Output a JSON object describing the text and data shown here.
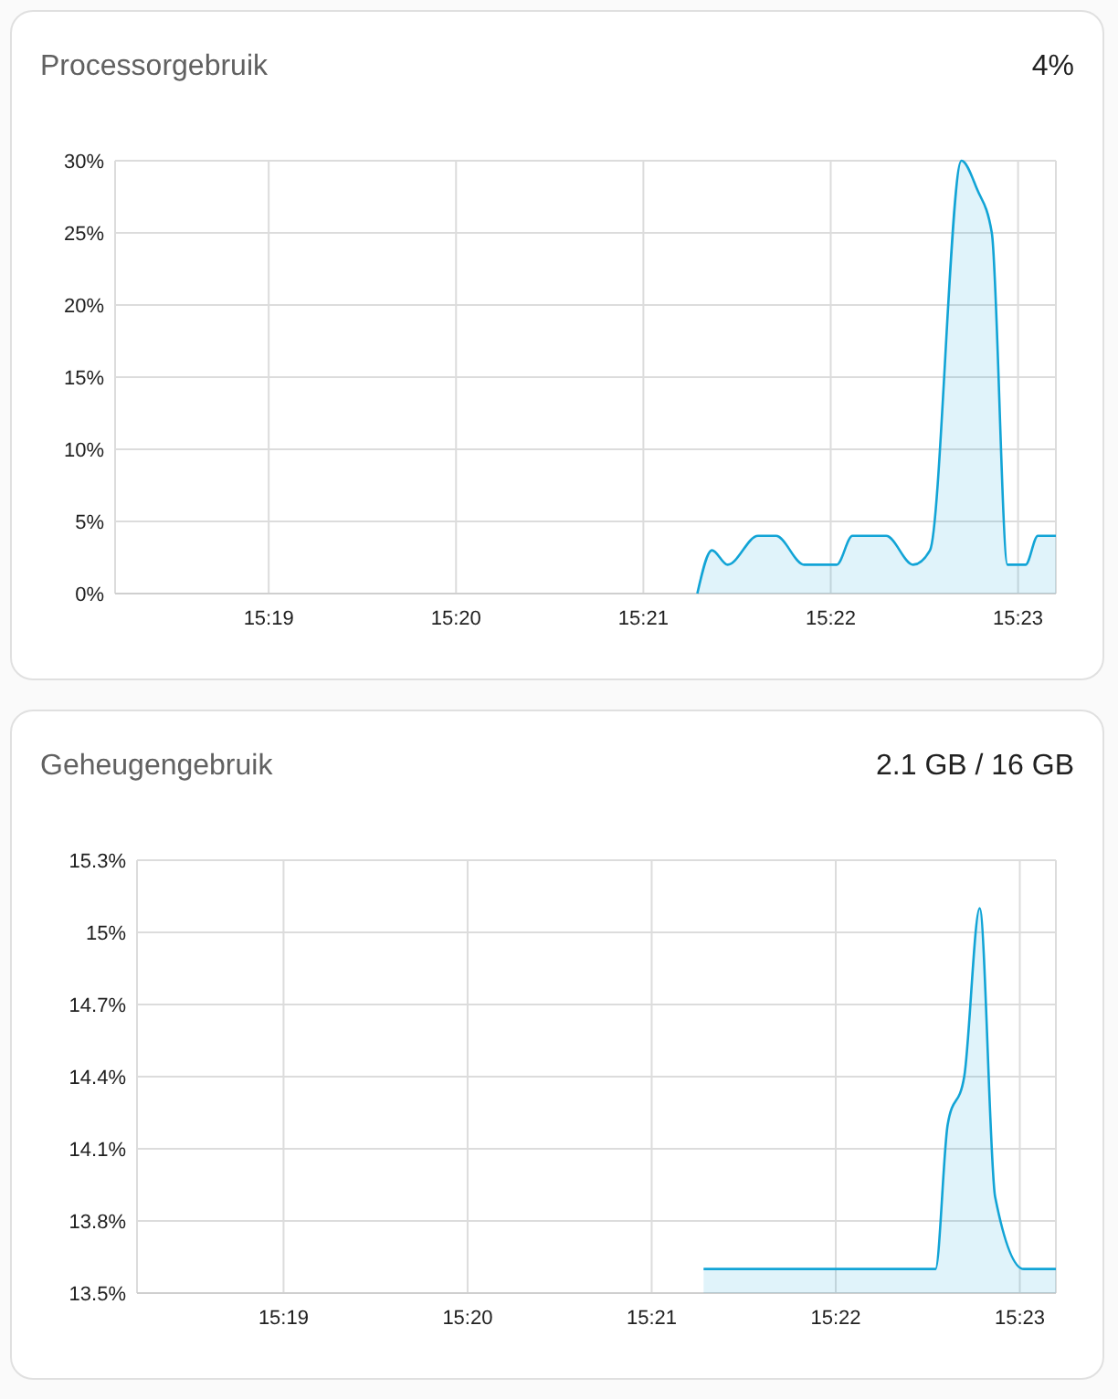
{
  "chart_data": [
    {
      "type": "area",
      "title": "Processorgebruik",
      "subtitle": "4%",
      "grid": true,
      "xlim": [
        15.303,
        15.3867
      ],
      "ylim": [
        0,
        30
      ],
      "xticks": [
        {
          "value": 15.316667,
          "label": "15:19"
        },
        {
          "value": 15.333333,
          "label": "15:20"
        },
        {
          "value": 15.35,
          "label": "15:21"
        },
        {
          "value": 15.366667,
          "label": "15:22"
        },
        {
          "value": 15.383333,
          "label": "15:23"
        }
      ],
      "yticks": [
        {
          "value": 0,
          "label": "0%"
        },
        {
          "value": 5,
          "label": "5%"
        },
        {
          "value": 10,
          "label": "10%"
        },
        {
          "value": 15,
          "label": "15%"
        },
        {
          "value": 20,
          "label": "20%"
        },
        {
          "value": 25,
          "label": "25%"
        },
        {
          "value": 30,
          "label": "30%"
        }
      ],
      "series": [
        {
          "color": "#12a4d6",
          "x": [
            15.3548,
            15.3561,
            15.3575,
            15.3602,
            15.3618,
            15.3643,
            15.3672,
            15.3686,
            15.3716,
            15.374,
            15.3755,
            15.3783,
            15.3797,
            15.381,
            15.3824,
            15.384,
            15.3851,
            15.3867
          ],
          "values": [
            0,
            3,
            2,
            4,
            4,
            2,
            2,
            4,
            4,
            2,
            3,
            30,
            28,
            25,
            2,
            2,
            4,
            4
          ]
        }
      ]
    },
    {
      "type": "area",
      "title": "Geheugengebruik",
      "subtitle": "2.1 GB / 16 GB",
      "grid": true,
      "xlim": [
        15.3034,
        15.3866
      ],
      "ylim": [
        13.5,
        15.3
      ],
      "xticks": [
        {
          "value": 15.316667,
          "label": "15:19"
        },
        {
          "value": 15.333333,
          "label": "15:20"
        },
        {
          "value": 15.35,
          "label": "15:21"
        },
        {
          "value": 15.366667,
          "label": "15:22"
        },
        {
          "value": 15.383333,
          "label": "15:23"
        }
      ],
      "yticks": [
        {
          "value": 13.5,
          "label": "13.5%"
        },
        {
          "value": 13.8,
          "label": "13.8%"
        },
        {
          "value": 14.1,
          "label": "14.1%"
        },
        {
          "value": 14.4,
          "label": "14.4%"
        },
        {
          "value": 14.7,
          "label": "14.7%"
        },
        {
          "value": 15,
          "label": "15%"
        },
        {
          "value": 15.3,
          "label": "15.3%"
        }
      ],
      "series": [
        {
          "color": "#12a4d6",
          "x": [
            15.3547,
            15.3757,
            15.3768,
            15.3783,
            15.3797,
            15.3811,
            15.3837,
            15.3866
          ],
          "values": [
            13.6,
            13.6,
            14.2,
            14.4,
            15.1,
            13.9,
            13.6,
            13.6
          ]
        }
      ]
    }
  ]
}
